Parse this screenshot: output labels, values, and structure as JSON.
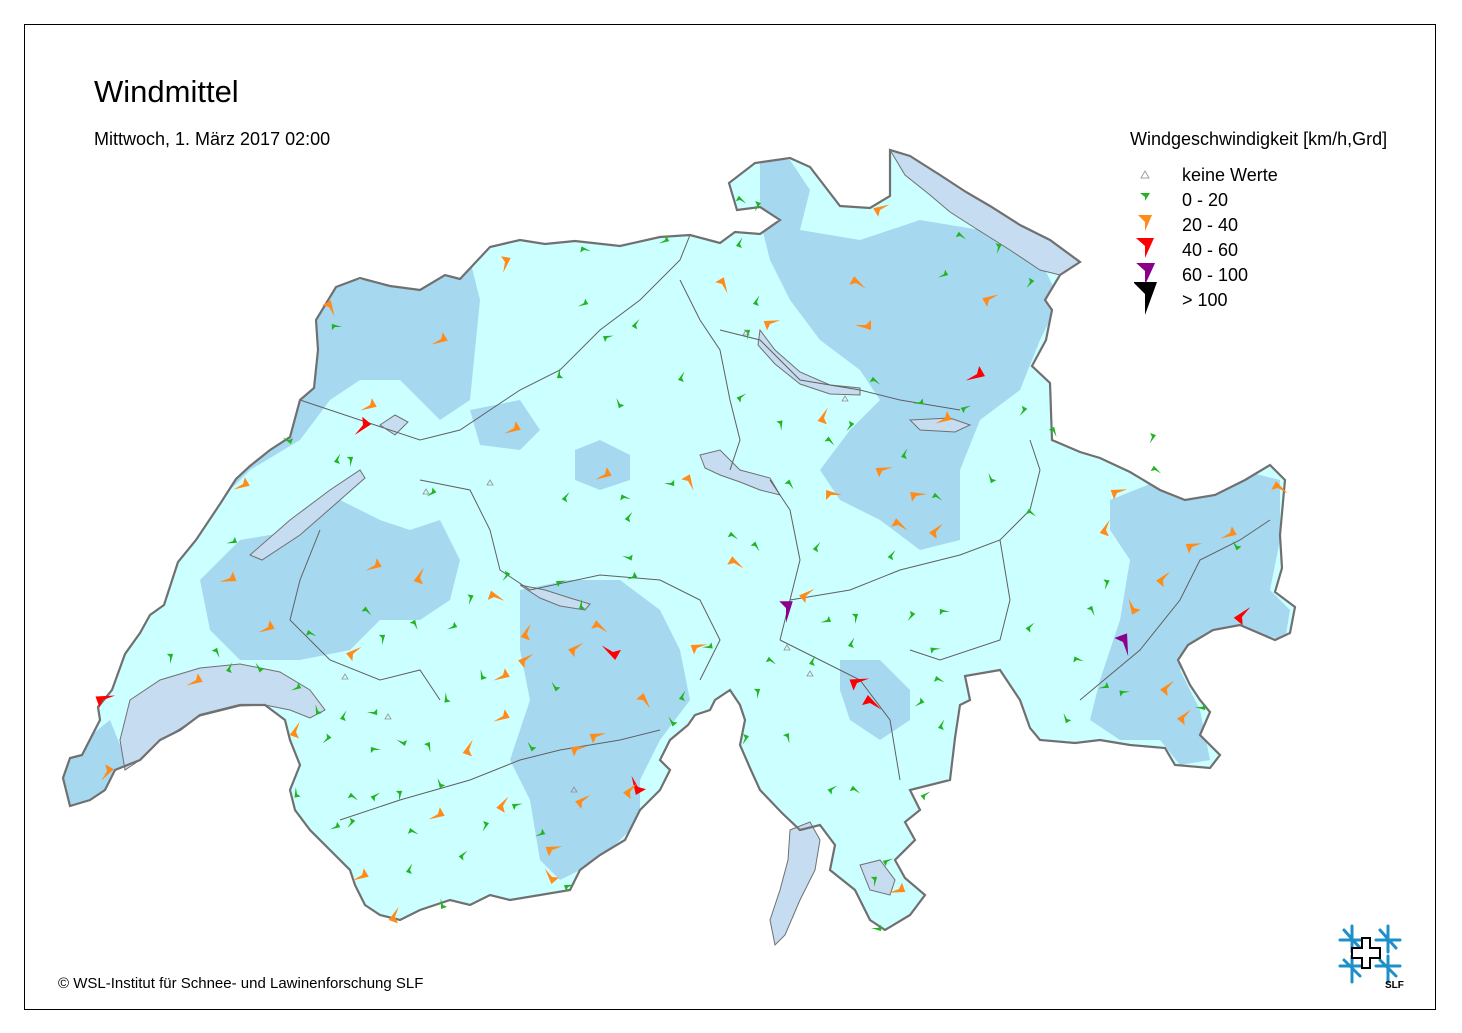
{
  "title": "Windmittel",
  "subtitle": "Mittwoch, 1. März 2017 02:00",
  "legend": {
    "title": "Windgeschwindigkeit [km/h,Grd]",
    "items": [
      {
        "label": "keine Werte",
        "color": "#a0a0a0",
        "symbol": "triangle-outline"
      },
      {
        "label": "0 - 20",
        "color": "#22b422",
        "symbol": "arrow-small"
      },
      {
        "label": "20 - 40",
        "color": "#ff8c1a",
        "symbol": "arrow-medium"
      },
      {
        "label": "40 - 60",
        "color": "#ff0000",
        "symbol": "arrow-large"
      },
      {
        "label": "60 - 100",
        "color": "#8b008b",
        "symbol": "arrow-xlarge"
      },
      {
        "label": "> 100",
        "color": "#000000",
        "symbol": "arrow-xxlarge"
      }
    ]
  },
  "copyright": "© WSL-Institut für Schnee- und Lawinenforschung SLF",
  "logo_text": "SLF",
  "colors": {
    "land_light": "#ccffff",
    "land_zone": "#a6d8f0",
    "lakes": "#c6dcf0",
    "border": "#707070",
    "stroke": "#505050"
  }
}
